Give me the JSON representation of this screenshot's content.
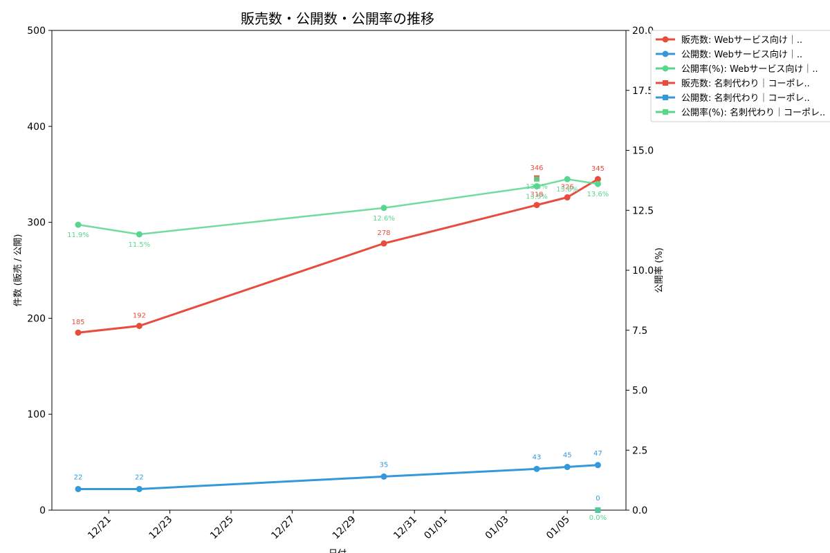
{
  "chart_data": {
    "type": "line",
    "title": "販売数・公開数・公開率の推移",
    "xlabel": "日付",
    "ylabel": "件数 (販売 / 公開)",
    "y2label": "公開率 (%)",
    "ylim": [
      0,
      500
    ],
    "y2lim": [
      0,
      20
    ],
    "y_ticks": [
      "0",
      "100",
      "200",
      "300",
      "400",
      "500"
    ],
    "y2_ticks": [
      "0.0",
      "2.5",
      "5.0",
      "7.5",
      "10.0",
      "12.5",
      "15.0",
      "17.5",
      "20.0"
    ],
    "x_ticks": [
      "12/21",
      "12/23",
      "12/25",
      "12/27",
      "12/29",
      "12/31",
      "01/01",
      "01/03",
      "01/05"
    ],
    "grid": false,
    "legend_position": "top-right outside",
    "colors": {
      "sales": "#e74c3c",
      "published": "#3498db",
      "rate": "#58d68d"
    },
    "series": [
      {
        "name": "販売数: Webサービス向け｜..",
        "axis": "left",
        "marker": "circle",
        "color": "#e74c3c",
        "x": [
          "12/20",
          "12/22",
          "12/30",
          "01/04",
          "01/05",
          "01/06"
        ],
        "values": [
          185,
          192,
          278,
          318,
          326,
          345
        ],
        "labels": [
          "185",
          "192",
          "278",
          "318",
          "326",
          "345"
        ]
      },
      {
        "name": "公開数: Webサービス向け｜..",
        "axis": "left",
        "marker": "circle",
        "color": "#3498db",
        "x": [
          "12/20",
          "12/22",
          "12/30",
          "01/04",
          "01/05",
          "01/06"
        ],
        "values": [
          22,
          22,
          35,
          43,
          45,
          47
        ],
        "labels": [
          "22",
          "22",
          "35",
          "43",
          "45",
          "47"
        ]
      },
      {
        "name": "公開率(%): Webサービス向け｜..",
        "axis": "right",
        "marker": "circle",
        "color": "#58d68d",
        "x": [
          "12/20",
          "12/22",
          "12/30",
          "01/04",
          "01/05",
          "01/06"
        ],
        "values": [
          11.9,
          11.5,
          12.6,
          13.5,
          13.8,
          13.6
        ],
        "labels": [
          "11.9%",
          "11.5%",
          "12.6%",
          "13.5%",
          "13.8%",
          "13.6%"
        ]
      },
      {
        "name": "販売数: 名刺代わり｜コーポレ..",
        "axis": "left",
        "marker": "square",
        "color": "#e74c3c",
        "x": [
          "01/04"
        ],
        "values": [
          346
        ],
        "labels": [
          "346"
        ]
      },
      {
        "name": "公開数: 名刺代わり｜コーポレ..",
        "axis": "left",
        "marker": "square",
        "color": "#3498db",
        "x": [
          "01/06"
        ],
        "values": [
          0
        ],
        "labels": [
          "0"
        ]
      },
      {
        "name": "公開率(%): 名刺代わり｜コーポレ..",
        "axis": "right",
        "marker": "square",
        "color": "#58d68d",
        "x": [
          "01/04",
          "01/06"
        ],
        "values": [
          13.8,
          0.0
        ],
        "labels": [
          "13.8%",
          "0.0%"
        ]
      }
    ]
  }
}
